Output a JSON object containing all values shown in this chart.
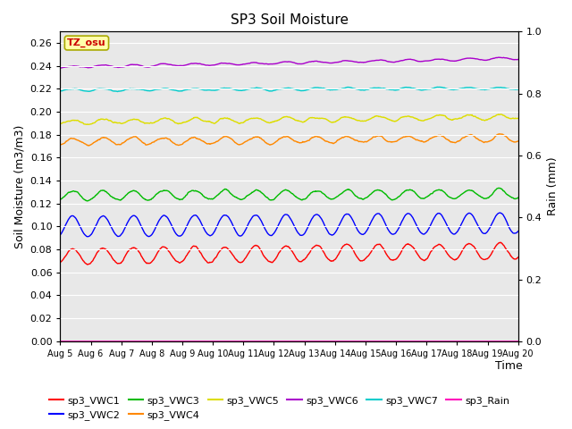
{
  "title": "SP3 Soil Moisture",
  "xlabel": "Time",
  "ylabel_left": "Soil Moisture (m3/m3)",
  "ylabel_right": "Rain (mm)",
  "n_points": 1440,
  "ylim_left": [
    0.0,
    0.27
  ],
  "ylim_right": [
    0.0,
    1.0
  ],
  "yticks_left": [
    0.0,
    0.02,
    0.04,
    0.06,
    0.08,
    0.1,
    0.12,
    0.14,
    0.16,
    0.18,
    0.2,
    0.22,
    0.24,
    0.26
  ],
  "yticks_right": [
    0.0,
    0.2,
    0.4,
    0.6,
    0.8,
    1.0
  ],
  "xtick_labels": [
    "Aug 5",
    "Aug 6",
    "Aug 7",
    "Aug 8",
    "Aug 9",
    "Aug 10",
    "Aug 11",
    "Aug 12",
    "Aug 13",
    "Aug 14",
    "Aug 15",
    "Aug 16",
    "Aug 17",
    "Aug 18",
    "Aug 19",
    "Aug 20"
  ],
  "series": {
    "sp3_VWC1": {
      "base": 0.074,
      "amp": 0.007,
      "noise": 0.002,
      "trend": 0.0003,
      "color": "#ff0000"
    },
    "sp3_VWC2": {
      "base": 0.1,
      "amp": 0.009,
      "noise": 0.001,
      "trend": 0.0002,
      "color": "#0000ff"
    },
    "sp3_VWC3": {
      "base": 0.127,
      "amp": 0.004,
      "noise": 0.002,
      "trend": 0.0001,
      "color": "#00bb00"
    },
    "sp3_VWC4": {
      "base": 0.174,
      "amp": 0.003,
      "noise": 0.002,
      "trend": 0.0002,
      "color": "#ff8800"
    },
    "sp3_VWC5": {
      "base": 0.191,
      "amp": 0.002,
      "noise": 0.002,
      "trend": 0.0003,
      "color": "#dddd00"
    },
    "sp3_VWC6": {
      "base": 0.239,
      "amp": 0.001,
      "noise": 0.001,
      "trend": 0.0005,
      "color": "#aa00cc"
    },
    "sp3_VWC7": {
      "base": 0.219,
      "amp": 0.001,
      "noise": 0.001,
      "trend": 0.0001,
      "color": "#00cccc"
    },
    "sp3_Rain": {
      "base": 0.0,
      "amp": 0.0,
      "noise": 0.0,
      "trend": 0.0,
      "color": "#ff00bb"
    }
  },
  "annotation_text": "TZ_osu",
  "annotation_color": "#cc0000",
  "annotation_bg": "#ffffaa",
  "annotation_border": "#aaaa00",
  "bg_color": "#e8e8e8",
  "grid_color": "#ffffff",
  "legend_order": [
    "sp3_VWC1",
    "sp3_VWC2",
    "sp3_VWC3",
    "sp3_VWC4",
    "sp3_VWC5",
    "sp3_VWC6",
    "sp3_VWC7",
    "sp3_Rain"
  ]
}
